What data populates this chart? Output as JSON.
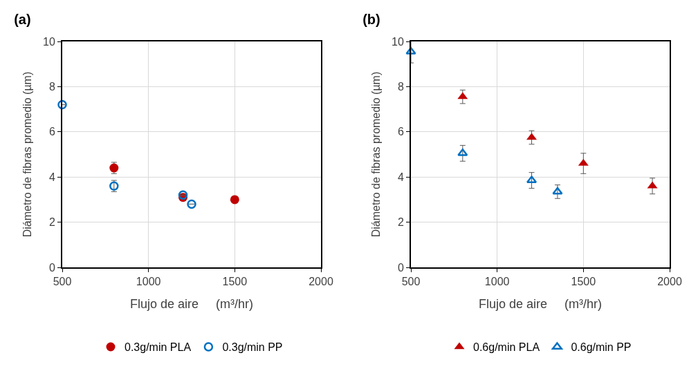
{
  "chart_data": [
    {
      "type": "scatter",
      "title": "(a)",
      "xlabel": "Flujo de aire     (m³/hr)",
      "ylabel": "Diámetro de fibras promedio (µm)",
      "xlim": [
        500,
        2000
      ],
      "xticks": [
        500,
        1000,
        1500,
        2000
      ],
      "ylim": [
        0,
        10
      ],
      "yticks": [
        0,
        2,
        4,
        6,
        8,
        10
      ],
      "grid": true,
      "legend": "bottom",
      "marker": "circle",
      "series": [
        {
          "name": "0.3g/min PLA",
          "color": "#c00000",
          "x": [
            800,
            1200,
            1500
          ],
          "values": [
            4.4,
            3.1,
            3.0
          ],
          "errors": [
            0.25,
            null,
            null
          ]
        },
        {
          "name": "0.3g/min PP",
          "color": "#0070c0",
          "x": [
            500,
            800,
            1200,
            1250
          ],
          "values": [
            7.2,
            3.6,
            3.2,
            2.8
          ],
          "errors": [
            null,
            0.25,
            null,
            null
          ]
        }
      ]
    },
    {
      "type": "scatter",
      "title": "(b)",
      "xlabel": "Flujo de aire     (m³/hr)",
      "ylabel": "Diámetro de fibras promedio (µm)",
      "xlim": [
        500,
        2000
      ],
      "xticks": [
        500,
        1000,
        1500,
        2000
      ],
      "ylim": [
        0,
        10
      ],
      "yticks": [
        0,
        2,
        4,
        6,
        8,
        10
      ],
      "grid": true,
      "legend": "bottom",
      "marker": "triangle",
      "series": [
        {
          "name": "0.6g/min PLA",
          "color": "#c00000",
          "x": [
            800,
            1200,
            1500,
            1900
          ],
          "values": [
            7.55,
            5.75,
            4.6,
            3.6
          ],
          "errors": [
            0.3,
            0.3,
            0.45,
            0.35
          ]
        },
        {
          "name": "0.6g/min PP",
          "color": "#0070c0",
          "x": [
            500,
            800,
            1200,
            1350
          ],
          "values": [
            9.55,
            5.05,
            3.85,
            3.35
          ],
          "errors": [
            0.5,
            0.35,
            0.35,
            0.3
          ]
        }
      ]
    }
  ]
}
